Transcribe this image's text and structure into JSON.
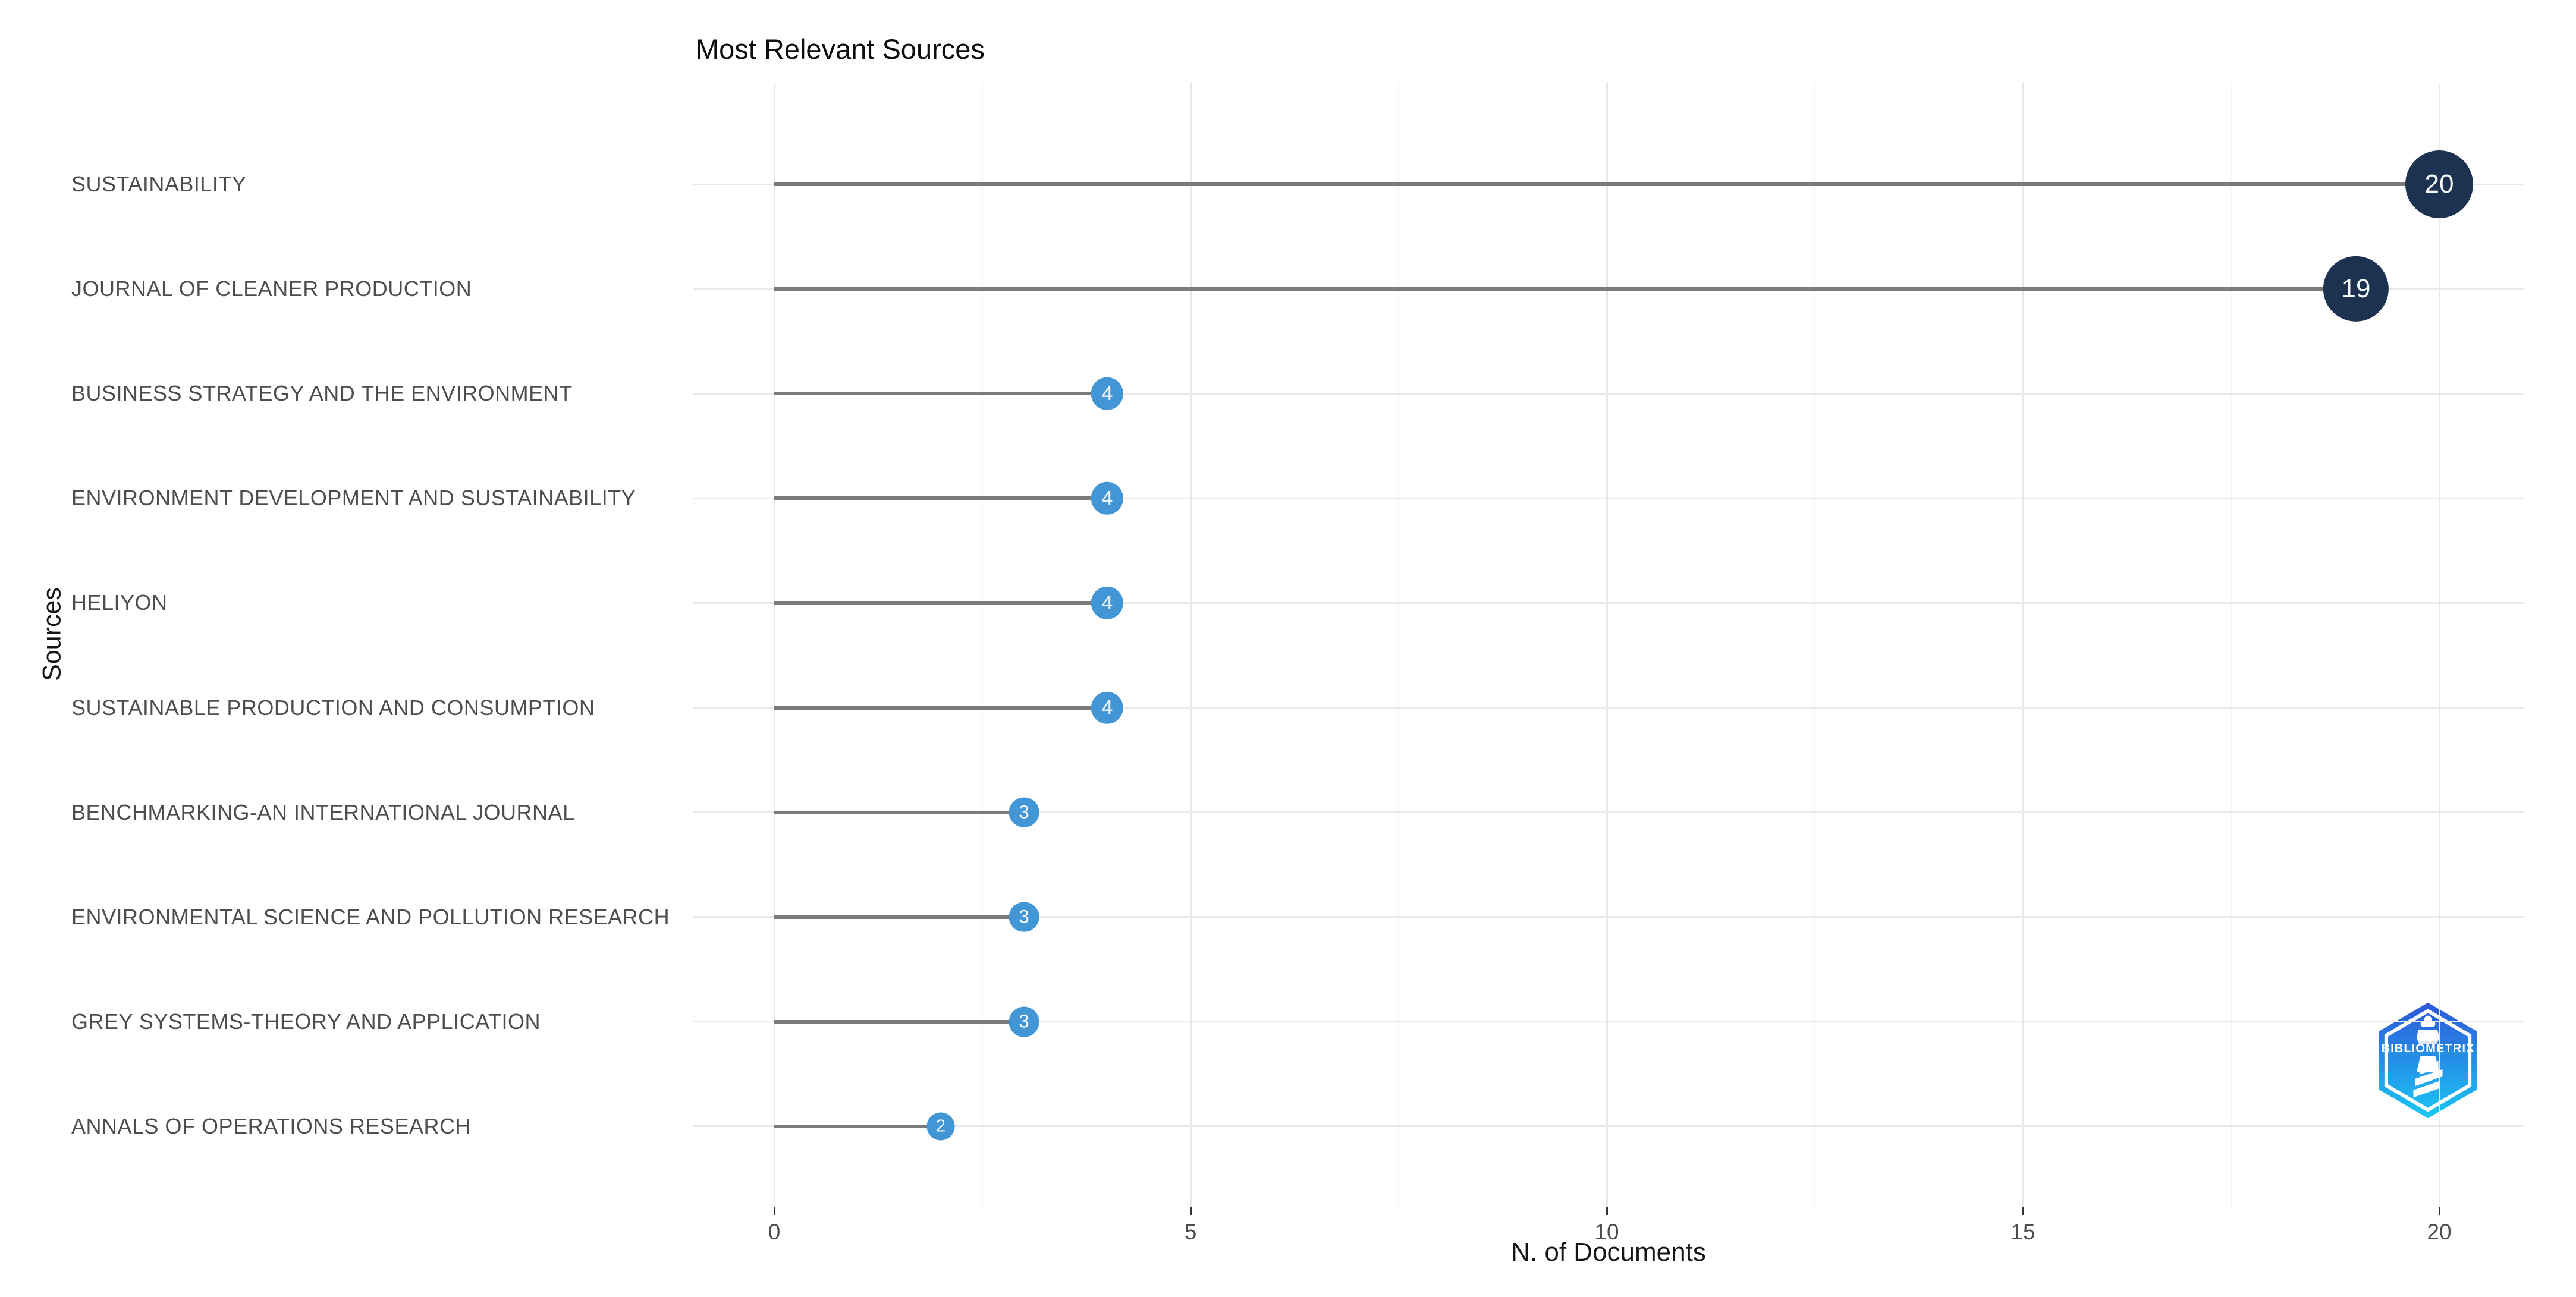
{
  "title": "Most Relevant Sources",
  "x_axis": {
    "label": "N. of Documents",
    "tick_labels": [
      "0",
      "5",
      "10",
      "15",
      "20"
    ]
  },
  "y_axis": {
    "label": "Sources"
  },
  "logo": {
    "text": "BIBLIOMETRIX"
  },
  "colors": {
    "dot_high": "#1d3250",
    "dot_low": "#4296d5",
    "dot_text": "#f5f8fb",
    "stem": "#7b7b7b",
    "grid_major": "#e9e9e9",
    "grid_minor": "#f4f4f4",
    "axis_text": "#4d4d4d",
    "tick_mark": "#333333",
    "logo_top": "#2e57d8",
    "logo_bottom": "#1ac8f5"
  },
  "chart_data": {
    "type": "bar",
    "orientation": "horizontal-lollipop",
    "categories": [
      "SUSTAINABILITY",
      "JOURNAL OF CLEANER PRODUCTION",
      "BUSINESS STRATEGY AND THE ENVIRONMENT",
      "ENVIRONMENT DEVELOPMENT AND SUSTAINABILITY",
      "HELIYON",
      "SUSTAINABLE PRODUCTION AND CONSUMPTION",
      "BENCHMARKING-AN INTERNATIONAL JOURNAL",
      "ENVIRONMENTAL SCIENCE AND POLLUTION RESEARCH",
      "GREY SYSTEMS-THEORY AND APPLICATION",
      "ANNALS OF OPERATIONS RESEARCH"
    ],
    "values": [
      20,
      19,
      4,
      4,
      4,
      4,
      3,
      3,
      3,
      2
    ],
    "title": "Most Relevant Sources",
    "xlabel": "N. of Documents",
    "ylabel": "Sources",
    "xlim": [
      0,
      20
    ],
    "x_major_ticks": [
      0,
      5,
      10,
      15,
      20
    ],
    "x_minor_ticks": [
      2.5,
      7.5,
      12.5,
      17.5
    ],
    "grid": true,
    "legend": false
  }
}
